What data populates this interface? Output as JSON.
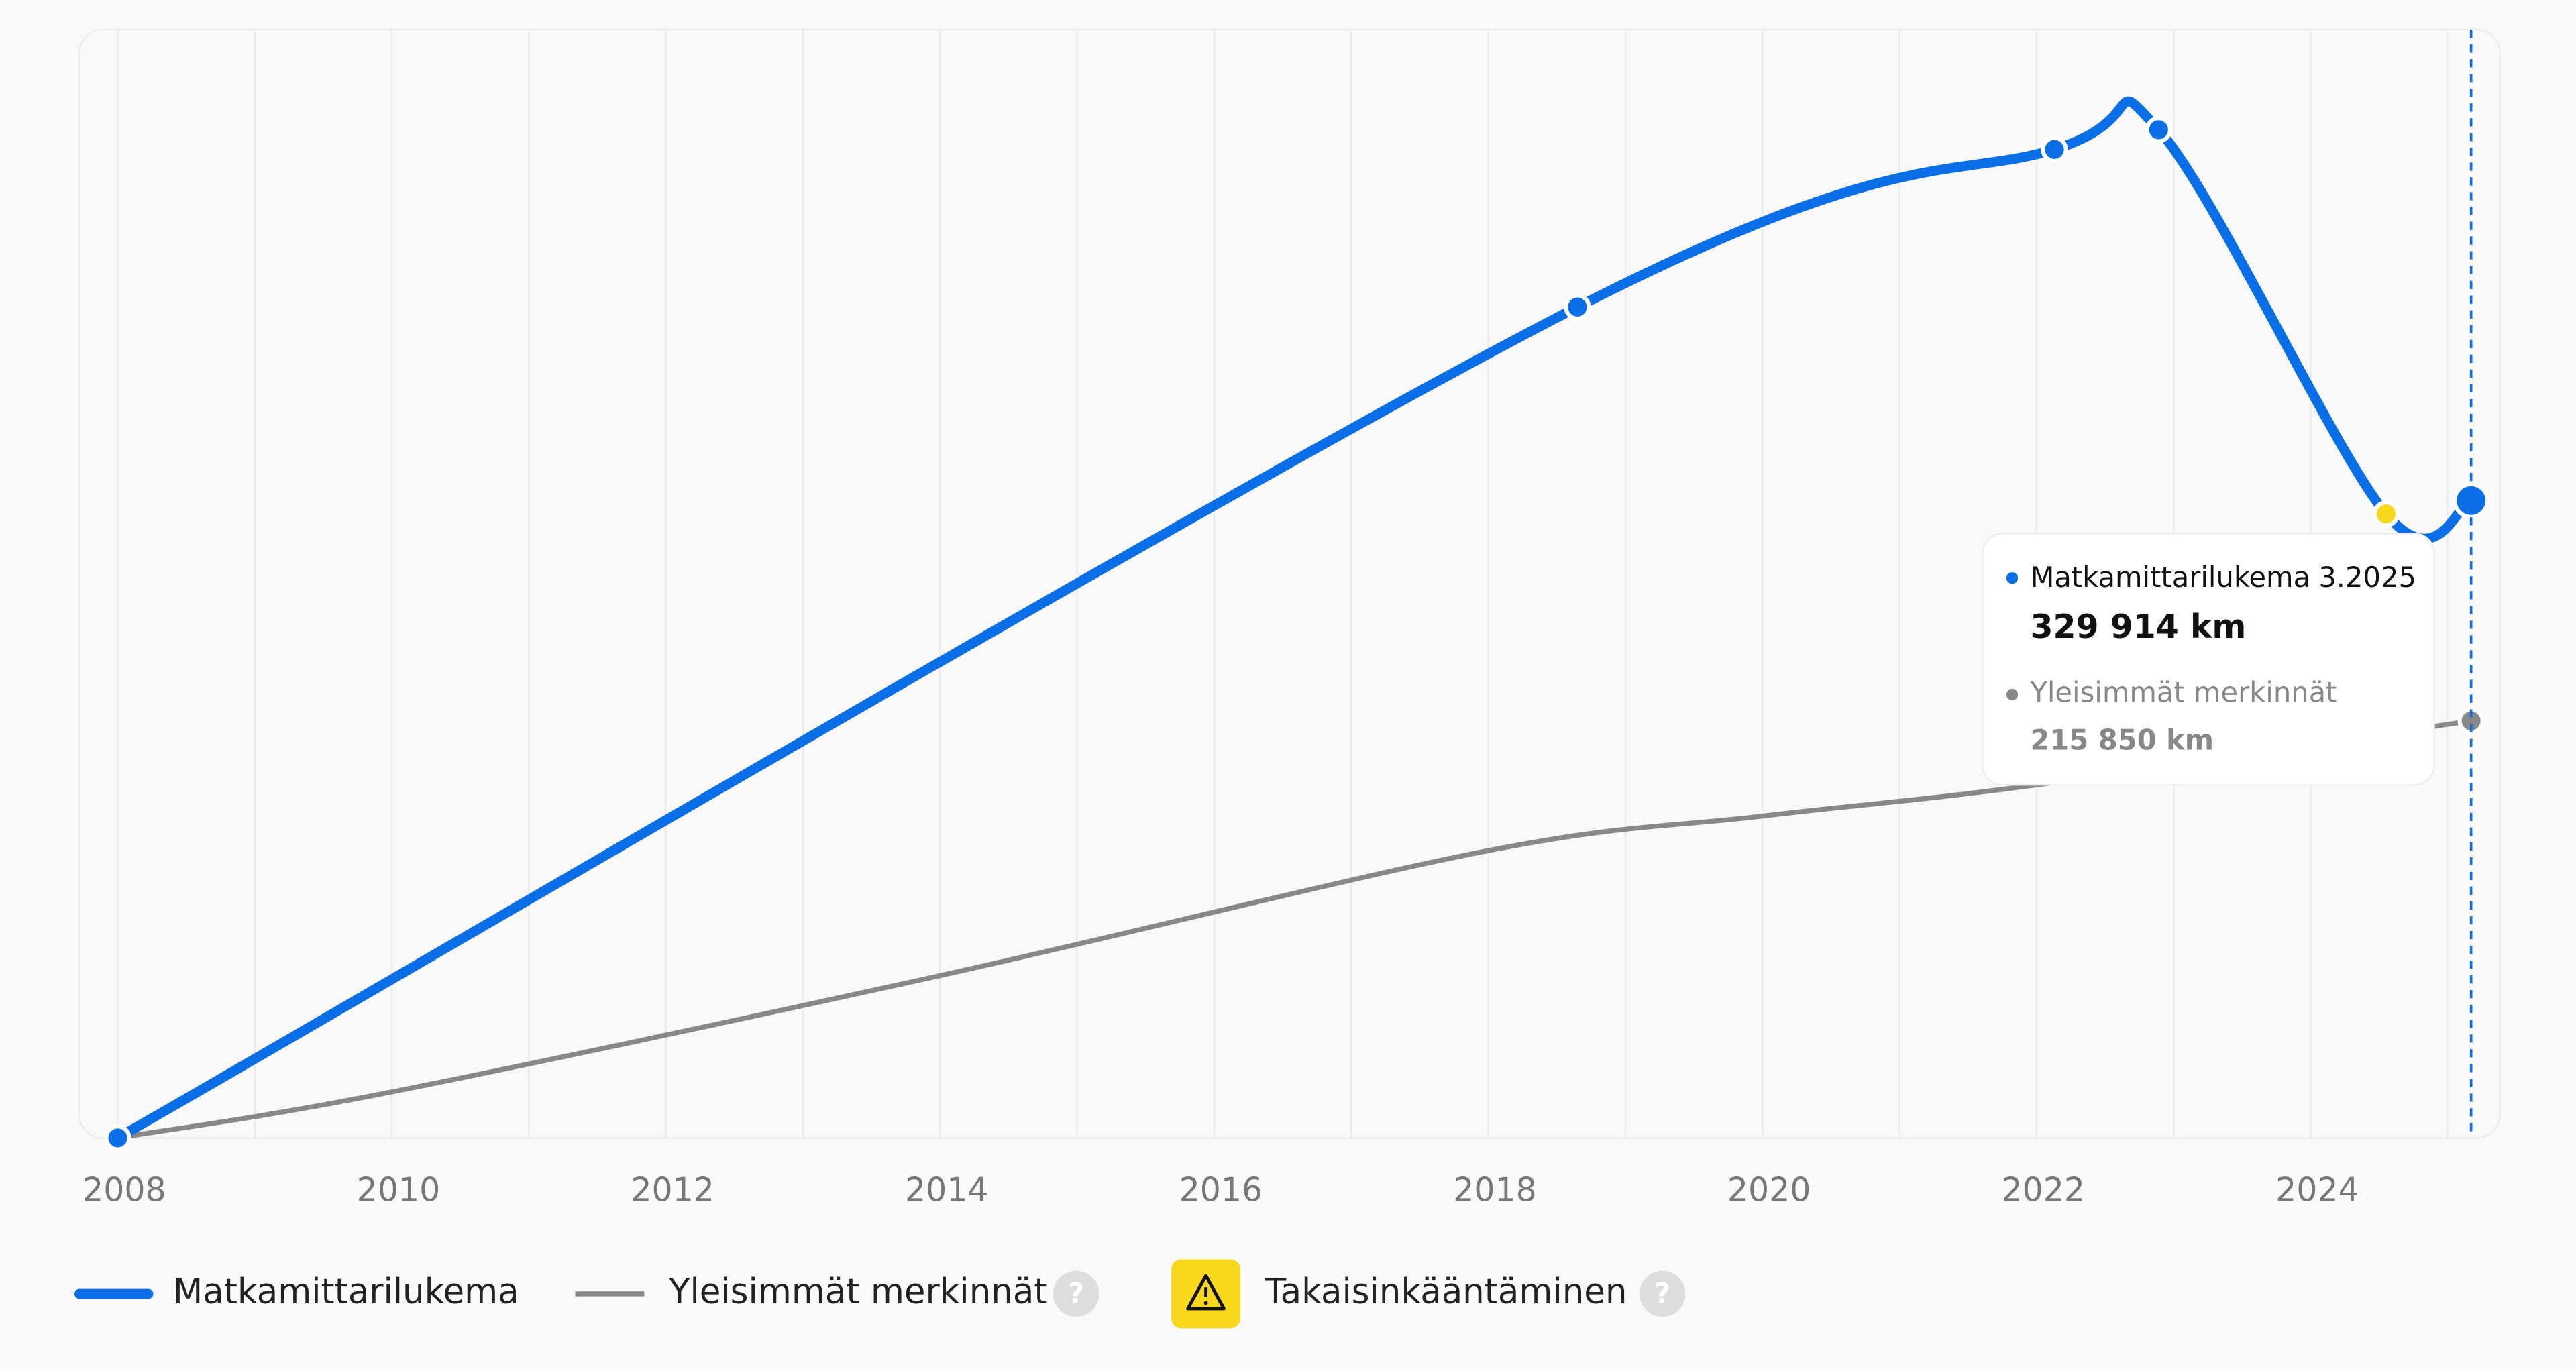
{
  "chart_data": {
    "type": "line",
    "xlim": [
      2007.72,
      2025.38
    ],
    "ylim": [
      0,
      573750
    ],
    "xticks": [
      2008,
      2010,
      2012,
      2014,
      2016,
      2018,
      2020,
      2022,
      2024
    ],
    "minor_xticks": [
      2009,
      2011,
      2013,
      2015,
      2017,
      2019,
      2021,
      2023,
      2025
    ],
    "grid": true,
    "series": [
      {
        "name": "Matkamittarilukema",
        "color": "#0a6ee6",
        "marker": "all",
        "x": [
          2008.0,
          2018.65,
          2022.13,
          2022.89,
          2024.55,
          2025.17
        ],
        "values": [
          0,
          430100,
          511700,
          521900,
          323000,
          329914
        ],
        "value_labels": [
          null,
          null,
          null,
          null,
          null,
          "329 914 km"
        ]
      },
      {
        "name": "Yleisimmät merkinnät",
        "color": "#888888",
        "marker": "last",
        "help": true,
        "x": [
          2008.0,
          2010.0,
          2014.0,
          2018.0,
          2020.0,
          2022.0,
          2025.17
        ],
        "values": [
          0,
          23800,
          84000,
          148700,
          166600,
          182700,
          215850
        ],
        "value_labels": [
          null,
          null,
          null,
          null,
          null,
          null,
          "215 850 km"
        ]
      }
    ],
    "highlight": {
      "name": "Takaisinkääntäminen",
      "color": "#f7d81c",
      "series": 0,
      "index": 4
    },
    "tooltip": {
      "date": "3.2025",
      "index_series_0": 5,
      "index_series_1": 6
    }
  }
}
